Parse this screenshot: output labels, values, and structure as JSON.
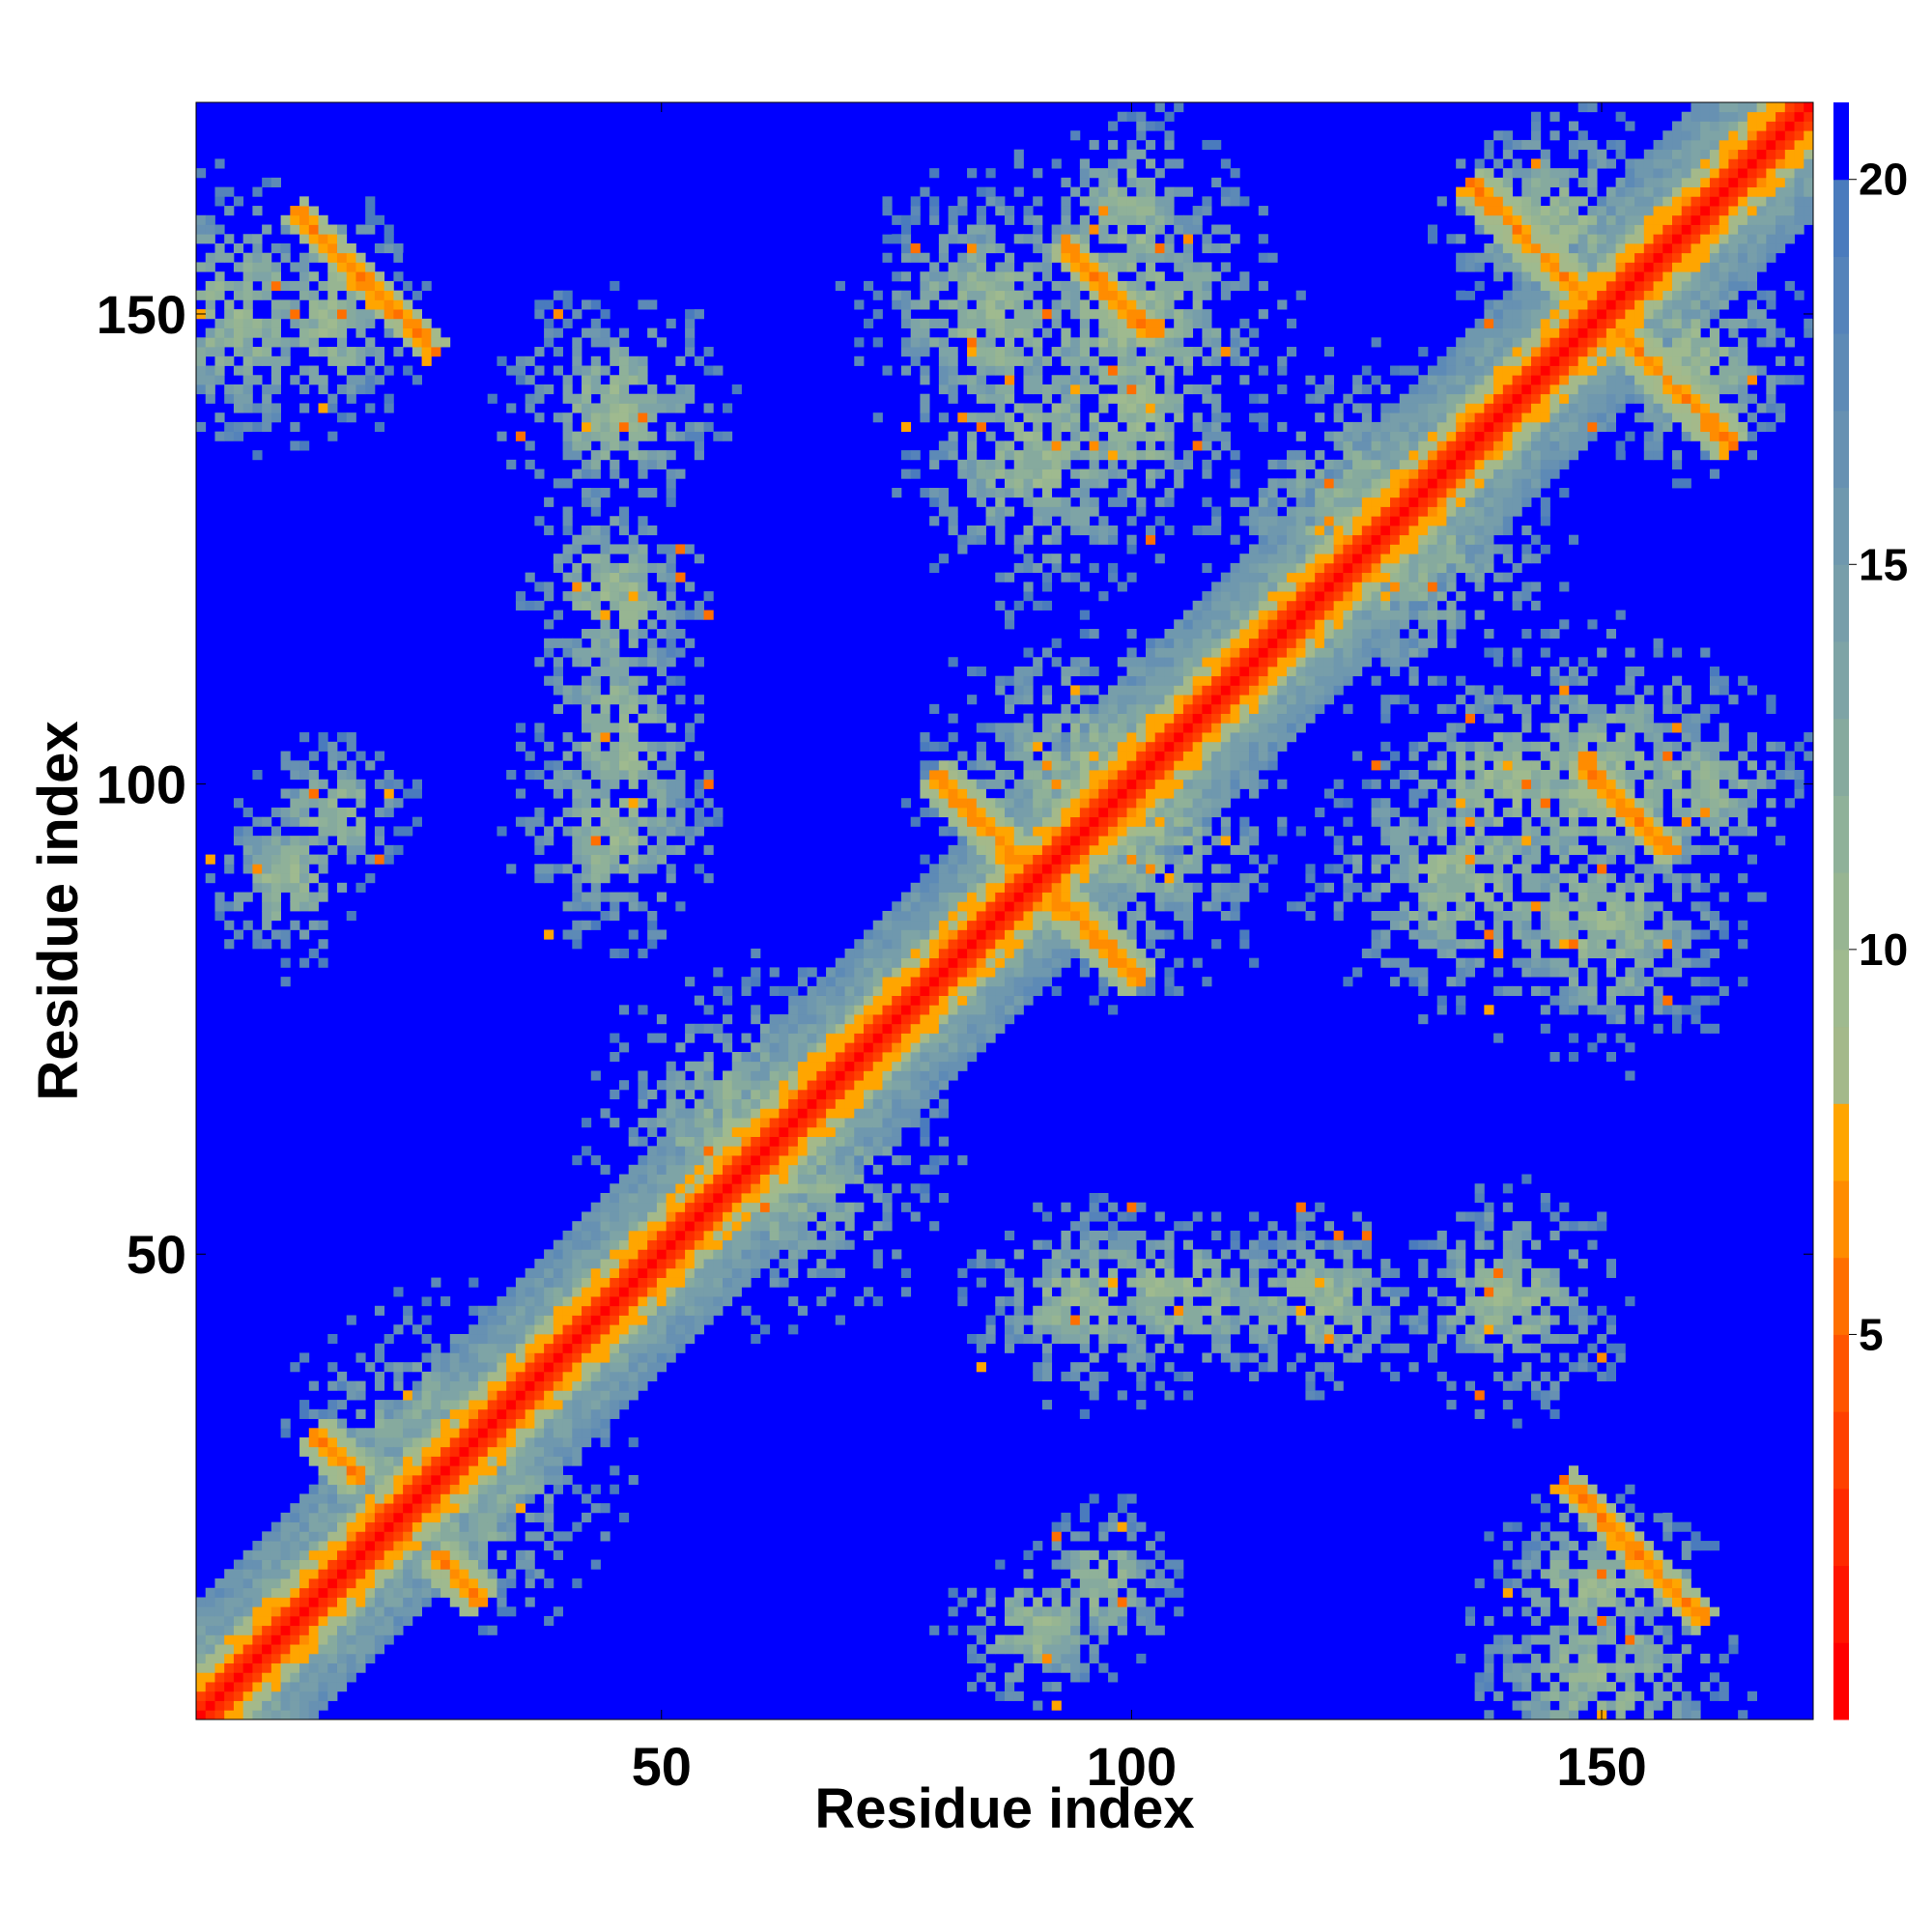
{
  "chart_data": {
    "type": "heatmap",
    "title": "",
    "xlabel": "Residue index",
    "ylabel": "Residue index",
    "n_residues": 172,
    "xlim": [
      1,
      172
    ],
    "ylim": [
      1,
      172
    ],
    "x_ticks": [
      50,
      100,
      150
    ],
    "y_ticks": [
      50,
      100,
      150
    ],
    "colorbar": {
      "ticks": [
        5,
        10,
        15,
        20
      ],
      "range": [
        0,
        21
      ],
      "levels": [
        {
          "max": 1,
          "color": "#ff0000"
        },
        {
          "max": 2,
          "color": "#ff1500"
        },
        {
          "max": 3,
          "color": "#ff2a00"
        },
        {
          "max": 4,
          "color": "#ff4000"
        },
        {
          "max": 5,
          "color": "#ff5500"
        },
        {
          "max": 6,
          "color": "#ff6f00"
        },
        {
          "max": 7,
          "color": "#ff8c00"
        },
        {
          "max": 8,
          "color": "#ffa500"
        },
        {
          "max": 9,
          "color": "#a4b98a"
        },
        {
          "max": 10,
          "color": "#9fba8f"
        },
        {
          "max": 11,
          "color": "#97b592"
        },
        {
          "max": 12,
          "color": "#8fb199"
        },
        {
          "max": 13,
          "color": "#86aa9e"
        },
        {
          "max": 14,
          "color": "#7ea4a6"
        },
        {
          "max": 15,
          "color": "#779eaa"
        },
        {
          "max": 16,
          "color": "#6f98ae"
        },
        {
          "max": 17,
          "color": "#6791b2"
        },
        {
          "max": 18,
          "color": "#5d8ab6"
        },
        {
          "max": 19,
          "color": "#5583ba"
        },
        {
          "max": 20,
          "color": "#4a7bbd"
        },
        {
          "max": 21,
          "color": "#0000ff"
        }
      ]
    },
    "values": "Pairwise residue distance map (symmetric). Near-diagonal band of short distances (0-5, red), antiparallel contact stripes at residues ~20-30, ~80-95/95-85, ~145-160/150-160 and corresponding off-diagonal blocks; distances beyond 20 shown in blue."
  }
}
